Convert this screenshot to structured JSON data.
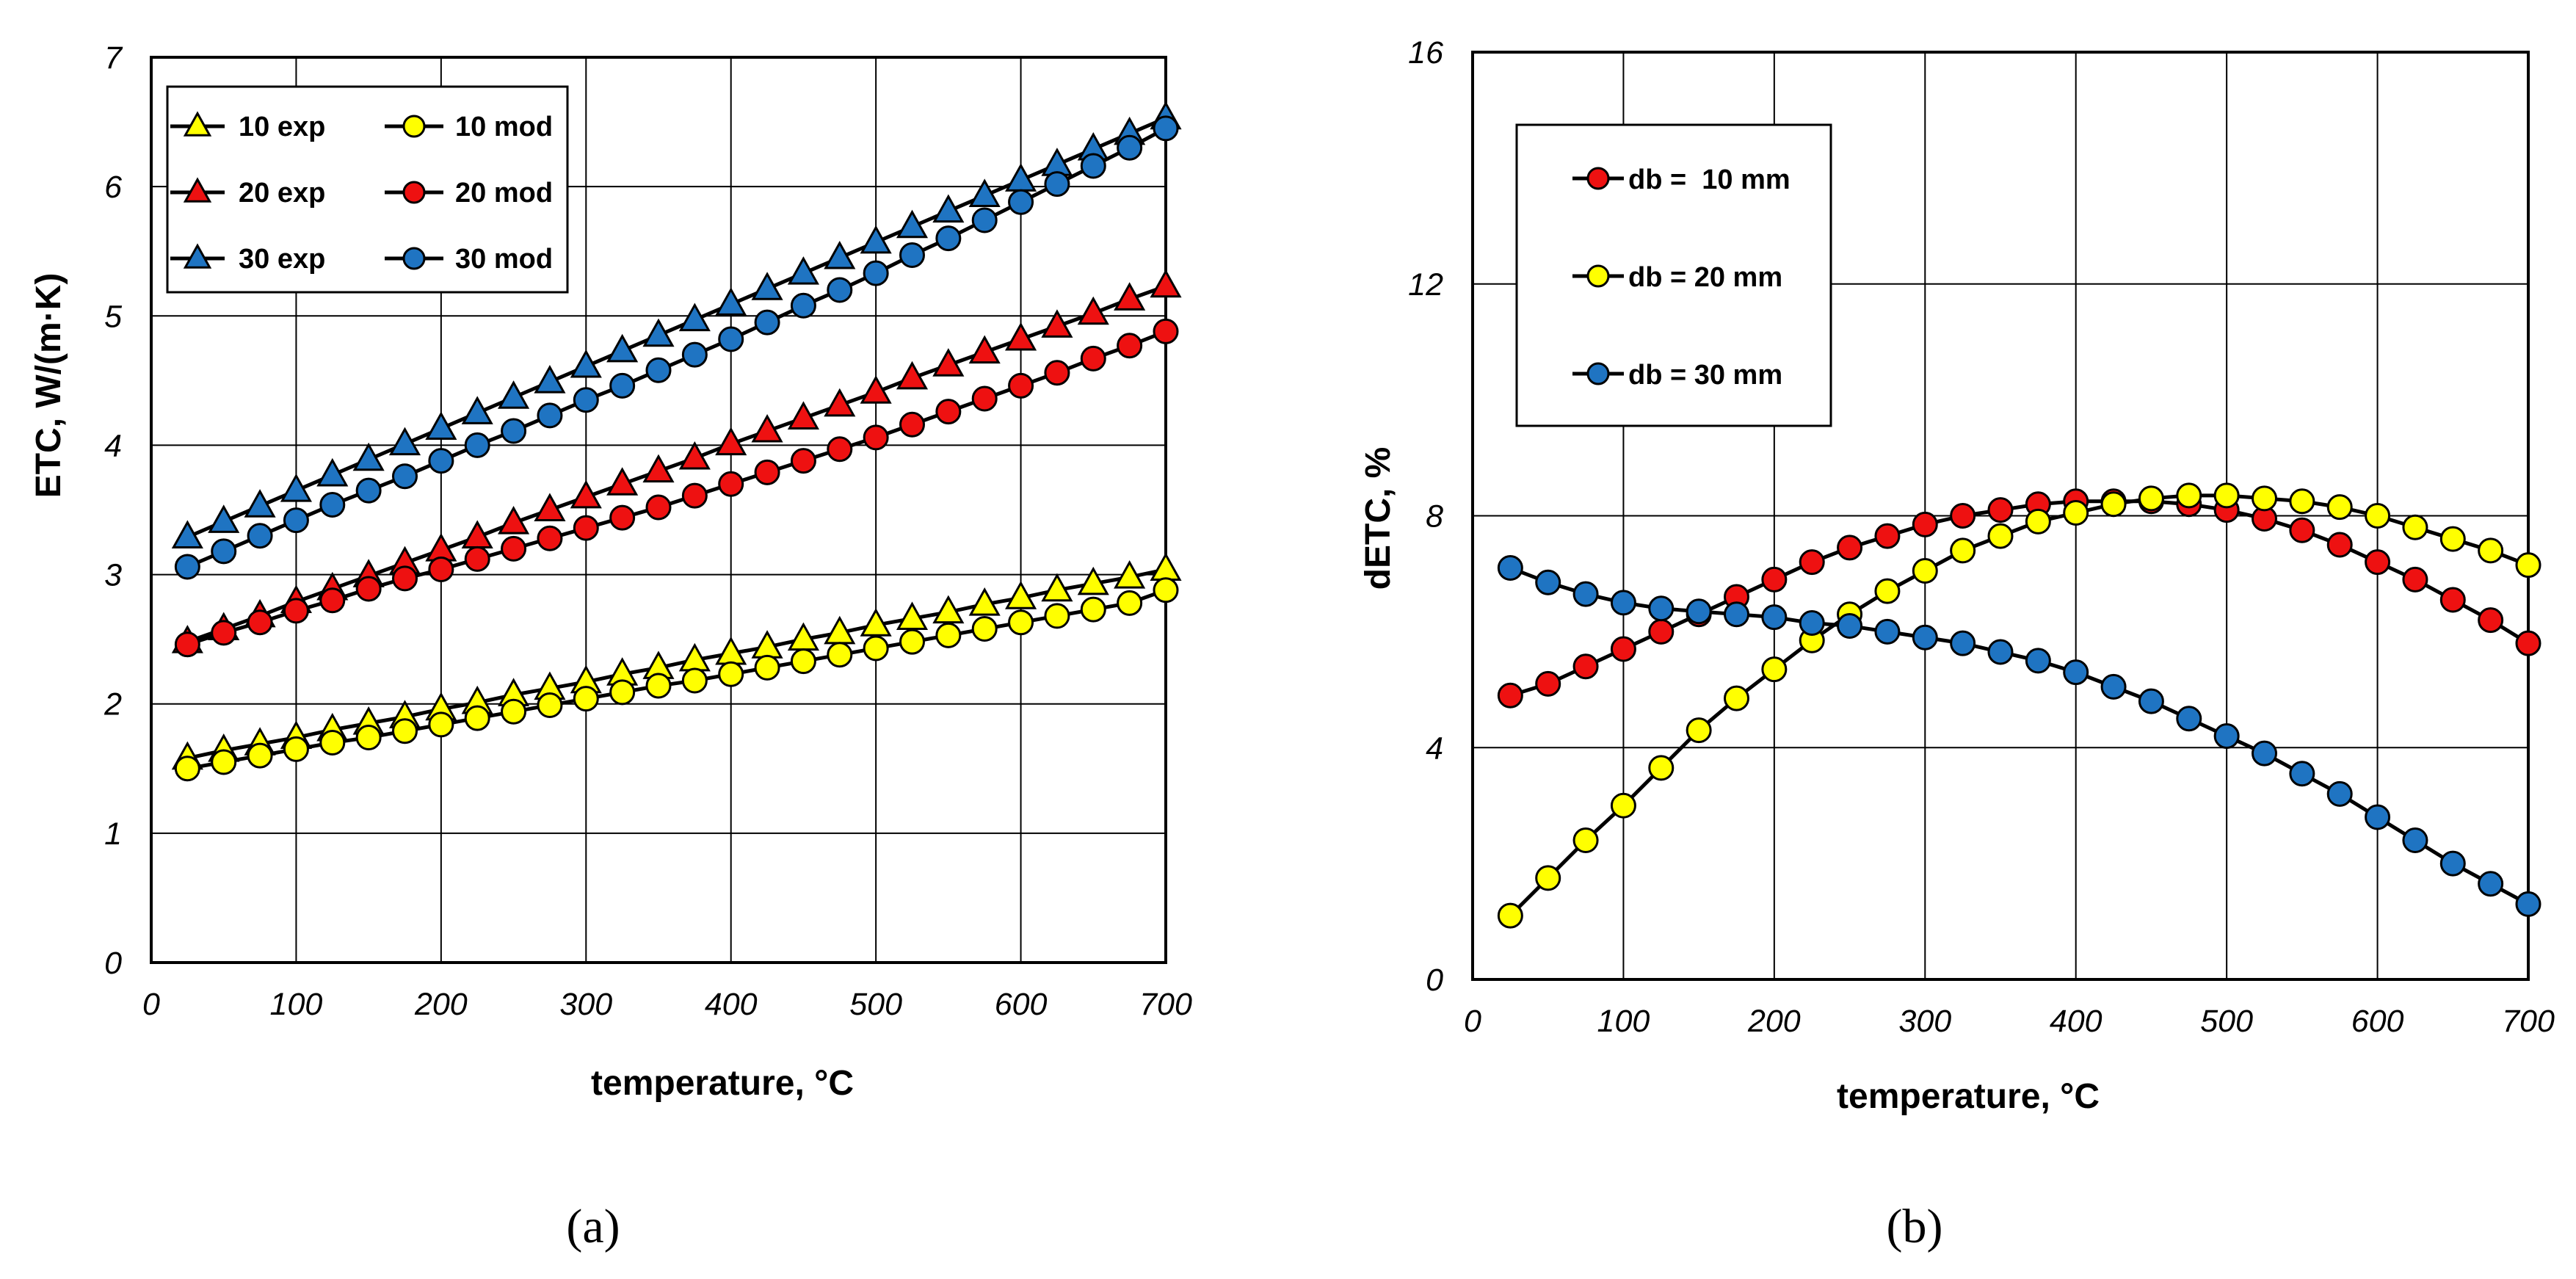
{
  "colors": {
    "yellow": "#ffff00",
    "red": "#ee1111",
    "blue": "#1f74c2",
    "line": "#000000"
  },
  "chart_data": [
    {
      "type": "line",
      "panel_label": "(a)",
      "xlabel": "temperature, °C",
      "ylabel": "ETC,   W/(m·K)",
      "xlim": [
        0,
        700
      ],
      "ylim": [
        0,
        7
      ],
      "x_ticks": [
        "0",
        "100",
        "200",
        "300",
        "400",
        "500",
        "600",
        "700"
      ],
      "y_ticks": [
        "0",
        "1",
        "2",
        "3",
        "4",
        "5",
        "6",
        "7"
      ],
      "grid": true,
      "legend_position": "top-left",
      "legend_columns": 2,
      "x": [
        25,
        50,
        75,
        100,
        125,
        150,
        175,
        200,
        225,
        250,
        275,
        300,
        325,
        350,
        375,
        400,
        425,
        450,
        475,
        500,
        525,
        550,
        575,
        600,
        625,
        650,
        675,
        700
      ],
      "series": [
        {
          "name": "10 exp",
          "marker": "triangle",
          "color": "yellow",
          "values": [
            1.58,
            1.64,
            1.69,
            1.74,
            1.8,
            1.85,
            1.9,
            1.96,
            2.01,
            2.07,
            2.12,
            2.17,
            2.23,
            2.28,
            2.34,
            2.39,
            2.44,
            2.5,
            2.55,
            2.61,
            2.66,
            2.71,
            2.77,
            2.82,
            2.88,
            2.93,
            2.98,
            3.04
          ]
        },
        {
          "name": "10 mod",
          "marker": "circle",
          "color": "yellow",
          "values": [
            1.5,
            1.55,
            1.6,
            1.65,
            1.7,
            1.74,
            1.79,
            1.84,
            1.89,
            1.94,
            1.99,
            2.04,
            2.09,
            2.14,
            2.18,
            2.23,
            2.28,
            2.33,
            2.38,
            2.43,
            2.48,
            2.53,
            2.58,
            2.63,
            2.68,
            2.73,
            2.78,
            2.88
          ]
        },
        {
          "name": "20 exp",
          "marker": "triangle",
          "color": "red",
          "values": [
            2.48,
            2.58,
            2.68,
            2.79,
            2.89,
            2.99,
            3.09,
            3.19,
            3.29,
            3.4,
            3.5,
            3.6,
            3.7,
            3.8,
            3.9,
            4.01,
            4.11,
            4.21,
            4.31,
            4.41,
            4.52,
            4.62,
            4.72,
            4.82,
            4.92,
            5.02,
            5.13,
            5.23
          ]
        },
        {
          "name": "20 mod",
          "marker": "circle",
          "color": "red",
          "values": [
            2.46,
            2.55,
            2.63,
            2.72,
            2.8,
            2.89,
            2.97,
            3.04,
            3.12,
            3.2,
            3.28,
            3.36,
            3.44,
            3.52,
            3.61,
            3.7,
            3.79,
            3.88,
            3.97,
            4.06,
            4.16,
            4.26,
            4.36,
            4.46,
            4.56,
            4.67,
            4.77,
            4.88
          ]
        },
        {
          "name": "30 exp",
          "marker": "triangle",
          "color": "blue",
          "values": [
            3.29,
            3.41,
            3.53,
            3.65,
            3.77,
            3.89,
            4.01,
            4.13,
            4.25,
            4.37,
            4.49,
            4.61,
            4.73,
            4.85,
            4.97,
            5.09,
            5.21,
            5.33,
            5.45,
            5.57,
            5.69,
            5.81,
            5.93,
            6.05,
            6.17,
            6.29,
            6.41,
            6.53
          ]
        },
        {
          "name": "30 mod",
          "marker": "circle",
          "color": "blue",
          "values": [
            3.06,
            3.18,
            3.3,
            3.42,
            3.54,
            3.65,
            3.76,
            3.88,
            4.0,
            4.11,
            4.23,
            4.35,
            4.46,
            4.58,
            4.7,
            4.82,
            4.95,
            5.08,
            5.2,
            5.33,
            5.47,
            5.6,
            5.74,
            5.88,
            6.02,
            6.16,
            6.3,
            6.45
          ]
        }
      ]
    },
    {
      "type": "line",
      "panel_label": "(b)",
      "xlabel": "temperature, °C",
      "ylabel": "dETC, %",
      "xlim": [
        0,
        700
      ],
      "ylim": [
        0,
        16
      ],
      "x_ticks": [
        "0",
        "100",
        "200",
        "300",
        "400",
        "500",
        "600",
        "700"
      ],
      "y_ticks": [
        "0",
        "4",
        "8",
        "12",
        "16"
      ],
      "grid": true,
      "legend_position": "top-left",
      "legend_columns": 1,
      "x": [
        25,
        50,
        75,
        100,
        125,
        150,
        175,
        200,
        225,
        250,
        275,
        300,
        325,
        350,
        375,
        400,
        425,
        450,
        475,
        500,
        525,
        550,
        575,
        600,
        625,
        650,
        675,
        700
      ],
      "series": [
        {
          "name": "db =  10 mm",
          "marker": "circle",
          "color": "red",
          "values": [
            4.9,
            5.1,
            5.4,
            5.7,
            6.0,
            6.3,
            6.6,
            6.9,
            7.2,
            7.45,
            7.65,
            7.85,
            8.0,
            8.1,
            8.2,
            8.25,
            8.25,
            8.25,
            8.2,
            8.1,
            7.95,
            7.75,
            7.5,
            7.2,
            6.9,
            6.55,
            6.2,
            5.8
          ]
        },
        {
          "name": "db = 20 mm",
          "marker": "circle",
          "color": "yellow",
          "values": [
            1.1,
            1.75,
            2.4,
            3.0,
            3.65,
            4.3,
            4.85,
            5.35,
            5.85,
            6.3,
            6.7,
            7.05,
            7.4,
            7.65,
            7.9,
            8.05,
            8.2,
            8.3,
            8.35,
            8.35,
            8.3,
            8.25,
            8.15,
            8.0,
            7.8,
            7.6,
            7.4,
            7.15
          ]
        },
        {
          "name": "db = 30 mm",
          "marker": "circle",
          "color": "blue",
          "values": [
            7.1,
            6.85,
            6.65,
            6.5,
            6.4,
            6.35,
            6.3,
            6.25,
            6.15,
            6.1,
            6.0,
            5.9,
            5.8,
            5.65,
            5.5,
            5.3,
            5.05,
            4.8,
            4.5,
            4.2,
            3.9,
            3.55,
            3.2,
            2.8,
            2.4,
            2.0,
            1.65,
            1.3
          ]
        }
      ]
    }
  ]
}
